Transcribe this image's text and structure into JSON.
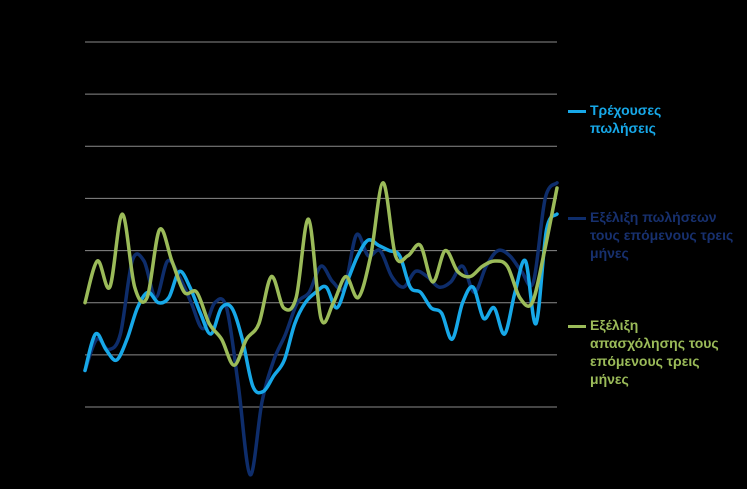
{
  "chart_data": {
    "type": "line",
    "title": "",
    "xlabel": "",
    "ylabel": "",
    "ylim": [
      -1.0,
      6.0
    ],
    "grid": true,
    "legend_position": "right",
    "series": [
      {
        "name": "Τρέχουσες πωλήσεις",
        "color": "#17a8e8",
        "values": [
          -0.3,
          0.4,
          0.1,
          -0.1,
          0.3,
          0.9,
          1.2,
          1.0,
          1.1,
          1.6,
          1.3,
          0.8,
          0.4,
          0.9,
          0.9,
          0.3,
          -0.6,
          -0.7,
          -0.4,
          -0.1,
          0.6,
          1.0,
          1.2,
          1.3,
          0.9,
          1.4,
          1.9,
          2.2,
          2.1,
          2.0,
          1.9,
          1.3,
          1.2,
          0.9,
          0.8,
          0.3,
          1.0,
          1.3,
          0.7,
          0.9,
          0.4,
          1.2,
          1.8,
          0.6,
          2.4,
          2.7
        ]
      },
      {
        "name": "Εξέλιξη πωλήσεων τους επόμενους τρεις μήνες",
        "color": "#0e2d6b",
        "values": [
          -0.3,
          0.3,
          0.1,
          0.4,
          1.8,
          1.8,
          1.1,
          1.8,
          1.5,
          1.0,
          0.5,
          1.0,
          0.9,
          -0.6,
          -2.3,
          -0.9,
          -0.1,
          0.4,
          1.0,
          1.2,
          1.7,
          1.4,
          1.3,
          2.3,
          1.9,
          2.0,
          1.5,
          1.3,
          1.6,
          1.5,
          1.3,
          1.4,
          1.7,
          1.2,
          1.7,
          2.0,
          1.9,
          1.6,
          1.4,
          3.0,
          3.3
        ]
      },
      {
        "name": "Εξέλιξη απασχόλησης τους επόμενους τρεις μήνες",
        "color": "#9bbb59",
        "values": [
          1.0,
          1.8,
          1.3,
          2.7,
          1.3,
          1.1,
          2.4,
          1.8,
          1.2,
          1.2,
          0.6,
          0.3,
          -0.2,
          0.3,
          0.6,
          1.5,
          0.9,
          1.1,
          2.6,
          0.7,
          1.0,
          1.5,
          1.1,
          1.9,
          3.3,
          1.9,
          1.9,
          2.1,
          1.4,
          2.0,
          1.6,
          1.5,
          1.7,
          1.8,
          1.7,
          1.1,
          1.0,
          2.0,
          3.2
        ]
      }
    ]
  }
}
